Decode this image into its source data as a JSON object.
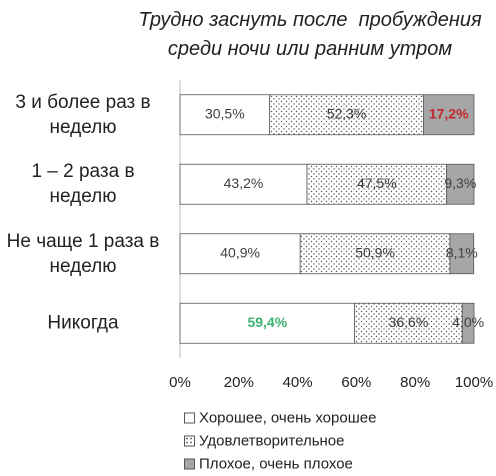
{
  "chart_data": {
    "type": "stacked_barh",
    "title": "Трудно заснуть после  пробуждения среди ночи или ранним утром",
    "categories": [
      "3 и более раз в неделю",
      "1 – 2 раза в неделю",
      "Не чаще 1 раза в неделю",
      "Никогда"
    ],
    "series": [
      {
        "name": "Хорошее, очень хорошее",
        "color": "#ffffff",
        "values": [
          30.5,
          43.2,
          40.9,
          59.4
        ],
        "value_labels": [
          "30,5%",
          "43,2%",
          "40,9%",
          "59,4%"
        ],
        "value_label_colors": [
          null,
          null,
          null,
          "#3cb371"
        ]
      },
      {
        "name": "Удовлетворительное",
        "color": "dotted",
        "values": [
          52.3,
          47.5,
          50.9,
          36.6
        ],
        "value_labels": [
          "52,3%",
          "47,5%",
          "50,9%",
          "36,6%"
        ],
        "value_label_colors": [
          null,
          null,
          null,
          null
        ]
      },
      {
        "name": "Плохое, очень плохое",
        "color": "#a6a6a6",
        "values": [
          17.2,
          9.3,
          8.1,
          4.0
        ],
        "value_labels": [
          "17,2%",
          "9,3%",
          "8,1%",
          "4,0%"
        ],
        "value_label_colors": [
          "#c0282d",
          null,
          null,
          null
        ]
      }
    ],
    "xlim": [
      0,
      100
    ],
    "xticks": [
      {
        "value": 0,
        "label": "0%"
      },
      {
        "value": 20,
        "label": "20%"
      },
      {
        "value": 40,
        "label": "40%"
      },
      {
        "value": 60,
        "label": "60%"
      },
      {
        "value": 80,
        "label": "80%"
      },
      {
        "value": 100,
        "label": "100%"
      }
    ]
  }
}
